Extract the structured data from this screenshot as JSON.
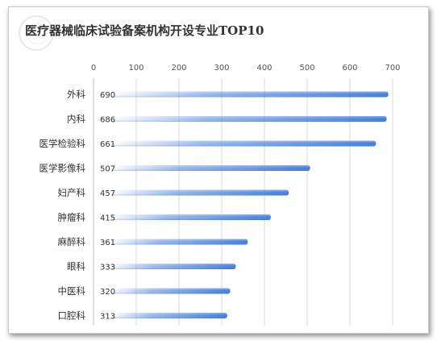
{
  "chart_data": {
    "type": "bar",
    "orientation": "horizontal",
    "title": "医疗器械临床试验备案机构开设专业TOP10",
    "categories": [
      "外科",
      "内科",
      "医学检验科",
      "医学影像科",
      "妇产科",
      "肿瘤科",
      "麻醉科",
      "眼科",
      "中医科",
      "口腔科"
    ],
    "values": [
      690,
      686,
      661,
      507,
      457,
      415,
      361,
      333,
      320,
      313
    ],
    "xlim": [
      0,
      700
    ],
    "xticks": [
      0,
      100,
      200,
      300,
      400,
      500,
      600,
      700
    ],
    "axis_position": "top",
    "grid": true,
    "legend": "none",
    "bar_color": "#3f7be0"
  }
}
